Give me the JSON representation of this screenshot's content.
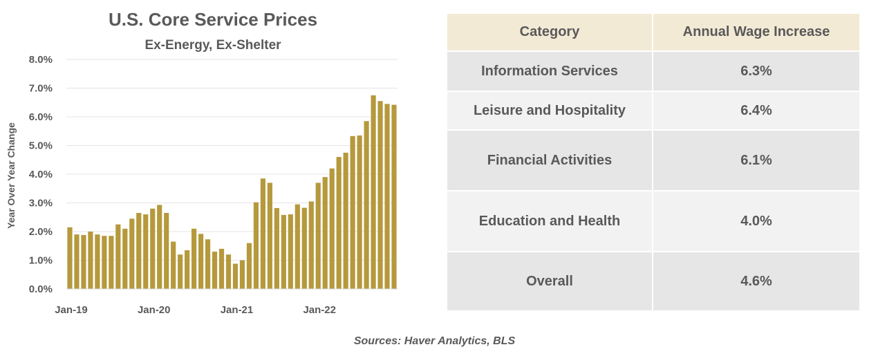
{
  "chart_data": {
    "type": "bar",
    "title": "U.S. Core Service Prices",
    "subtitle": "Ex-Energy, Ex-Shelter",
    "ylabel": "Year Over Year Change",
    "xlabel": "",
    "ylim": [
      0,
      8
    ],
    "yticks": [
      "0.0%",
      "1.0%",
      "2.0%",
      "3.0%",
      "4.0%",
      "5.0%",
      "6.0%",
      "7.0%",
      "8.0%"
    ],
    "xtick_labels": [
      {
        "index": 0,
        "label": "Jan-19"
      },
      {
        "index": 12,
        "label": "Jan-20"
      },
      {
        "index": 24,
        "label": "Jan-21"
      },
      {
        "index": 36,
        "label": "Jan-22"
      }
    ],
    "grid": true,
    "color": "#b5993c",
    "categories": [
      "Jan-19",
      "Feb-19",
      "Mar-19",
      "Apr-19",
      "May-19",
      "Jun-19",
      "Jul-19",
      "Aug-19",
      "Sep-19",
      "Oct-19",
      "Nov-19",
      "Dec-19",
      "Jan-20",
      "Feb-20",
      "Mar-20",
      "Apr-20",
      "May-20",
      "Jun-20",
      "Jul-20",
      "Aug-20",
      "Sep-20",
      "Oct-20",
      "Nov-20",
      "Dec-20",
      "Jan-21",
      "Feb-21",
      "Mar-21",
      "Apr-21",
      "May-21",
      "Jun-21",
      "Jul-21",
      "Aug-21",
      "Sep-21",
      "Oct-21",
      "Nov-21",
      "Dec-21",
      "Jan-22",
      "Feb-22",
      "Mar-22",
      "Apr-22",
      "May-22",
      "Jun-22",
      "Jul-22",
      "Aug-22",
      "Sep-22",
      "Oct-22",
      "Nov-22",
      "Dec-22"
    ],
    "values": [
      2.15,
      1.9,
      1.88,
      2.0,
      1.9,
      1.85,
      1.85,
      2.25,
      2.1,
      2.45,
      2.65,
      2.6,
      2.8,
      2.93,
      2.65,
      1.65,
      1.2,
      1.35,
      2.1,
      1.92,
      1.73,
      1.3,
      1.4,
      1.2,
      0.88,
      1.0,
      1.6,
      3.02,
      3.85,
      3.7,
      2.82,
      2.58,
      2.6,
      2.95,
      2.83,
      3.05,
      3.7,
      3.9,
      4.2,
      4.6,
      4.75,
      5.33,
      5.35,
      5.85,
      6.75,
      6.55,
      6.45,
      6.42
    ]
  },
  "table": {
    "headers": [
      "Category",
      "Annual Wage Increase"
    ],
    "rows": [
      [
        "Information Services",
        "6.3%"
      ],
      [
        "Leisure and Hospitality",
        "6.4%"
      ],
      [
        "Financial Activities",
        "6.1%"
      ],
      [
        "Education and Health",
        "4.0%"
      ],
      [
        "Overall",
        "4.6%"
      ]
    ]
  },
  "source": "Sources: Haver Analytics, BLS"
}
